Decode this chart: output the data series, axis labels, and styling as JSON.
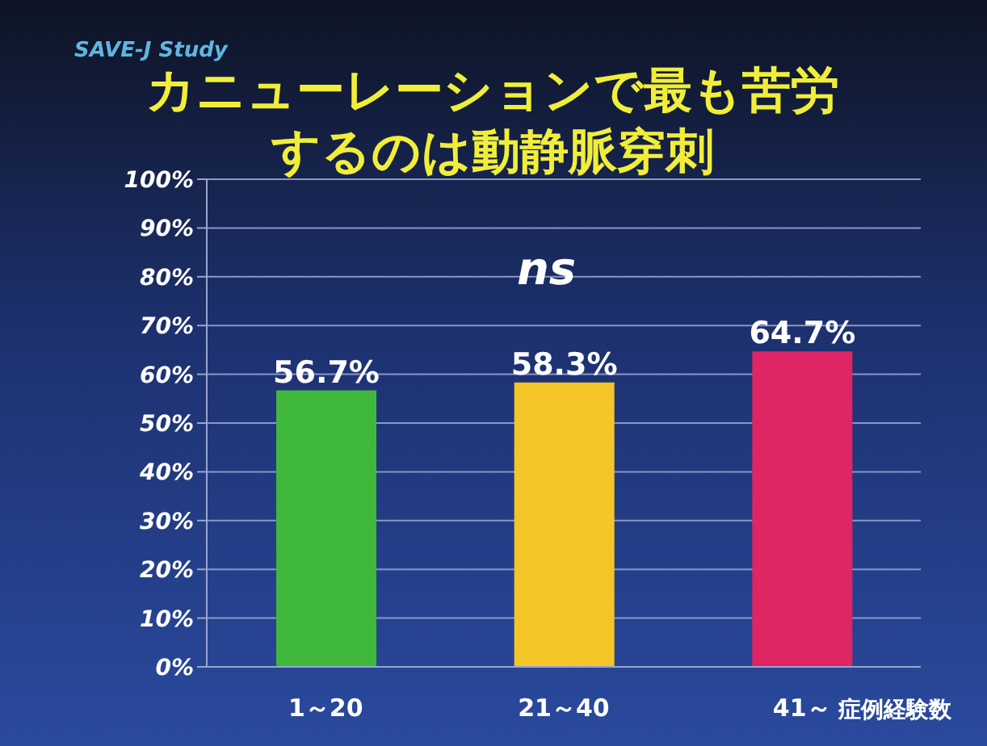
{
  "chart_data": {
    "type": "bar",
    "title": "カニューレーションで最も苦労するのは動静脈穿刺",
    "xlabel": "症例経験数",
    "annotations": [
      "SAVE-J Study",
      "ns"
    ],
    "categories": [
      "1～20",
      "21～40",
      "41～"
    ],
    "values": [
      56.7,
      58.3,
      64.7
    ],
    "colors": [
      "#3fb83c",
      "#f4c526",
      "#df2563"
    ],
    "value_labels": [
      "56.7%",
      "58.3%",
      "64.7%"
    ],
    "ylim": [
      0,
      100
    ],
    "yticks": [
      {
        "value": 0,
        "label": "0%"
      },
      {
        "value": 10,
        "label": "10%"
      },
      {
        "value": 20,
        "label": "20%"
      },
      {
        "value": 30,
        "label": "30%"
      },
      {
        "value": 40,
        "label": "40%"
      },
      {
        "value": 50,
        "label": "50%"
      },
      {
        "value": 60,
        "label": "60%"
      },
      {
        "value": 70,
        "label": "70%"
      },
      {
        "value": 80,
        "label": "80%"
      },
      {
        "value": 90,
        "label": "90%"
      },
      {
        "value": 100,
        "label": "100%"
      }
    ],
    "grid": "y",
    "legend": false
  }
}
